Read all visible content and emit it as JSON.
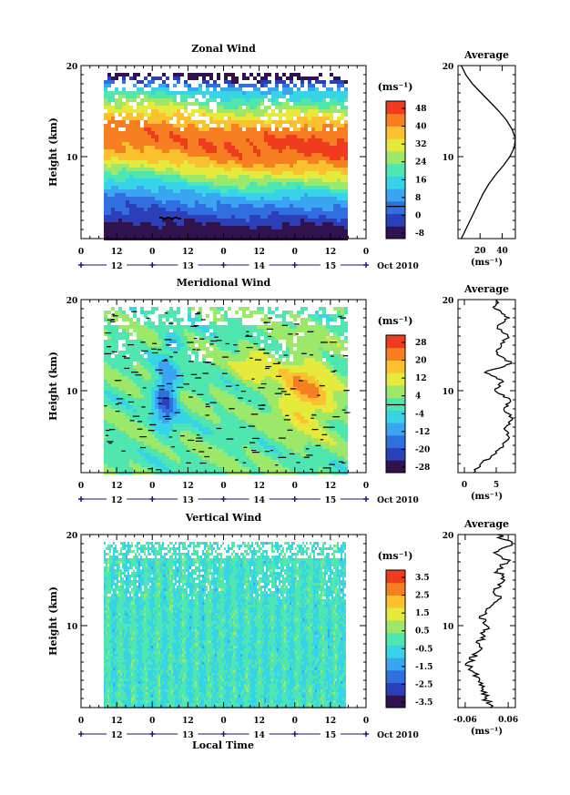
{
  "date_label": "Oct 2010",
  "xlabel_bottom": "Local Time",
  "hour_ticks": [
    "0",
    "12",
    "0",
    "12",
    "0",
    "12",
    "0",
    "12",
    "0"
  ],
  "day_labels": [
    "12",
    "13",
    "14",
    "15"
  ],
  "unit_label": "(ms⁻¹)",
  "colors": {
    "frame": "#000000",
    "day_marker": "#1a1a7a",
    "colormap": [
      "#30124f",
      "#2a3fb8",
      "#2f6fe0",
      "#3aa6f2",
      "#36d4e6",
      "#4fe6b0",
      "#9be86a",
      "#e6ea3c",
      "#fbc12e",
      "#f77f22",
      "#ef3c1e"
    ]
  },
  "chart_data": [
    {
      "type": "heatmap",
      "title": "Zonal Wind",
      "ylabel": "Height (km)",
      "ylim": [
        1,
        20
      ],
      "yticks": [
        "20",
        "10"
      ],
      "colorbar_ticks": [
        "48",
        "40",
        "32",
        "24",
        "16",
        "8",
        "0",
        "-8"
      ],
      "colorbar_range": [
        -12,
        52
      ],
      "contour_zero": true,
      "profile": {
        "title": "Average",
        "xticks": [
          "20",
          "40"
        ],
        "xrange": [
          0,
          52
        ],
        "xlabel": "(ms⁻¹)",
        "height": [
          1,
          2,
          3,
          4,
          5,
          6,
          7,
          8,
          9,
          10,
          11,
          12,
          13,
          14,
          15,
          16,
          17,
          18,
          19,
          20
        ],
        "values": [
          3,
          7,
          11,
          15,
          19,
          23,
          28,
          34,
          41,
          47,
          51,
          52,
          49,
          44,
          37,
          29,
          21,
          13,
          7,
          3
        ]
      }
    },
    {
      "type": "heatmap",
      "title": "Meridional Wind",
      "ylabel": "Height (km)",
      "ylim": [
        1,
        20
      ],
      "yticks": [
        "20",
        "10"
      ],
      "colorbar_ticks": [
        "28",
        "20",
        "12",
        "4",
        "-4",
        "-12",
        "-20",
        "-28"
      ],
      "colorbar_range": [
        -32,
        32
      ],
      "contour_zero": true,
      "profile": {
        "title": "Average",
        "xticks": [
          "0",
          "5"
        ],
        "xrange": [
          -1,
          8
        ],
        "xlabel": "(ms⁻¹)",
        "height": [
          1,
          2,
          3,
          4,
          5,
          6,
          7,
          8,
          9,
          10,
          11,
          12,
          13,
          14,
          15,
          16,
          17,
          18,
          19,
          20
        ],
        "values": [
          1.5,
          2.6,
          4.7,
          6.1,
          6.9,
          6.5,
          7.5,
          6.2,
          7.2,
          4.8,
          6.1,
          3.2,
          7.4,
          5.1,
          5.8,
          6.8,
          5.2,
          7.0,
          4.8,
          5.1
        ]
      }
    },
    {
      "type": "heatmap",
      "title": "Vertical Wind",
      "ylabel": "Height (km)",
      "ylim": [
        1,
        20
      ],
      "yticks": [
        "20",
        "10"
      ],
      "colorbar_ticks": [
        "3.5",
        "2.5",
        "1.5",
        "0.5",
        "-0.5",
        "-1.5",
        "-2.5",
        "-3.5"
      ],
      "colorbar_range": [
        -4,
        4
      ],
      "contour_zero": false,
      "profile": {
        "title": "Average",
        "xticks": [
          "-0.06",
          "0.06"
        ],
        "xrange": [
          -0.08,
          0.08
        ],
        "xlabel": "(ms⁻¹)",
        "height": [
          1,
          2,
          3,
          4,
          5,
          6,
          7,
          8,
          9,
          10,
          11,
          12,
          13,
          14,
          15,
          16,
          17,
          18,
          19,
          20
        ],
        "values": [
          0.01,
          0.0,
          -0.01,
          -0.02,
          -0.04,
          -0.05,
          -0.03,
          -0.02,
          -0.01,
          0.0,
          -0.02,
          0.01,
          0.04,
          0.02,
          0.05,
          0.03,
          0.06,
          0.02,
          0.07,
          0.03
        ]
      }
    }
  ]
}
